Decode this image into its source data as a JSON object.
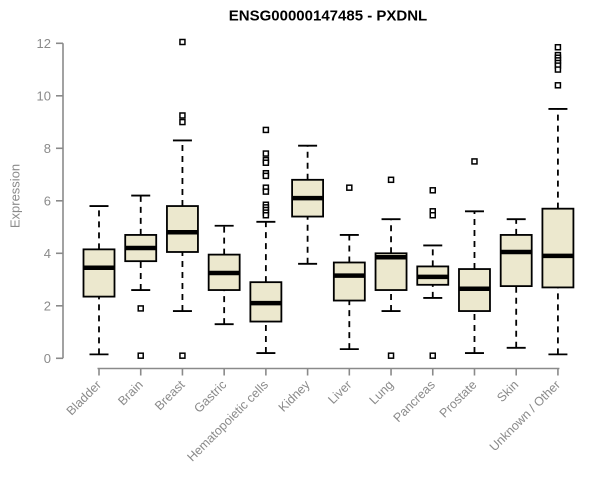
{
  "title": "ENSG00000147485 - PXDNL",
  "chart_data": {
    "type": "boxplot",
    "title": "ENSG00000147485 - PXDNL",
    "xlabel": "",
    "ylabel": "Expression",
    "ylim": [
      0,
      12
    ],
    "yticks": [
      0,
      2,
      4,
      6,
      8,
      10,
      12
    ],
    "grid": false,
    "legend": null,
    "categories": [
      "Bladder",
      "Brain",
      "Breast",
      "Gastric",
      "Hematopoietic cells",
      "Kidney",
      "Liver",
      "Lung",
      "Pancreas",
      "Prostate",
      "Skin",
      "Unknown / Other"
    ],
    "boxes": [
      {
        "category": "Bladder",
        "whisker_low": 0.15,
        "q1": 2.35,
        "median": 3.45,
        "q3": 4.15,
        "whisker_high": 5.8,
        "outliers": []
      },
      {
        "category": "Brain",
        "whisker_low": 2.6,
        "q1": 3.7,
        "median": 4.2,
        "q3": 4.7,
        "whisker_high": 6.2,
        "outliers": [
          1.9,
          0.1
        ]
      },
      {
        "category": "Breast",
        "whisker_low": 1.8,
        "q1": 4.05,
        "median": 4.8,
        "q3": 5.8,
        "whisker_high": 8.3,
        "outliers": [
          12.05,
          9.25,
          9.0,
          0.1
        ]
      },
      {
        "category": "Gastric",
        "whisker_low": 1.3,
        "q1": 2.6,
        "median": 3.25,
        "q3": 3.95,
        "whisker_high": 5.05,
        "outliers": []
      },
      {
        "category": "Hematopoietic cells",
        "whisker_low": 0.2,
        "q1": 1.4,
        "median": 2.1,
        "q3": 2.9,
        "whisker_high": 5.2,
        "outliers": [
          8.7,
          7.8,
          7.55,
          7.45,
          7.05,
          6.95,
          6.5,
          6.35,
          5.85,
          5.75,
          5.65,
          5.55,
          5.45
        ]
      },
      {
        "category": "Kidney",
        "whisker_low": 3.6,
        "q1": 5.4,
        "median": 6.1,
        "q3": 6.8,
        "whisker_high": 8.1,
        "outliers": []
      },
      {
        "category": "Liver",
        "whisker_low": 0.35,
        "q1": 2.2,
        "median": 3.15,
        "q3": 3.65,
        "whisker_high": 4.7,
        "outliers": [
          6.5
        ]
      },
      {
        "category": "Lung",
        "whisker_low": 1.8,
        "q1": 2.6,
        "median": 3.85,
        "q3": 4.0,
        "whisker_high": 5.3,
        "outliers": [
          6.8,
          0.1
        ]
      },
      {
        "category": "Pancreas",
        "whisker_low": 2.3,
        "q1": 2.8,
        "median": 3.1,
        "q3": 3.5,
        "whisker_high": 4.3,
        "outliers": [
          6.4,
          5.6,
          5.45,
          0.1
        ]
      },
      {
        "category": "Prostate",
        "whisker_low": 0.2,
        "q1": 1.8,
        "median": 2.65,
        "q3": 3.4,
        "whisker_high": 5.6,
        "outliers": [
          7.5
        ]
      },
      {
        "category": "Skin",
        "whisker_low": 0.4,
        "q1": 2.75,
        "median": 4.05,
        "q3": 4.7,
        "whisker_high": 5.3,
        "outliers": []
      },
      {
        "category": "Unknown / Other",
        "whisker_low": 0.15,
        "q1": 2.7,
        "median": 3.9,
        "q3": 5.7,
        "whisker_high": 9.5,
        "outliers": [
          11.85,
          11.55,
          11.45,
          11.35,
          11.25,
          11.15,
          11.0,
          10.4
        ]
      }
    ],
    "colors": {
      "box_fill": "#ece8ce",
      "box_border": "#000000",
      "median": "#000000",
      "whisker": "#000000",
      "outlier": "#000000",
      "axis": "#8a8a8a",
      "tick_label": "#8a8a8a",
      "title": "#000000",
      "background": "#ffffff"
    }
  }
}
